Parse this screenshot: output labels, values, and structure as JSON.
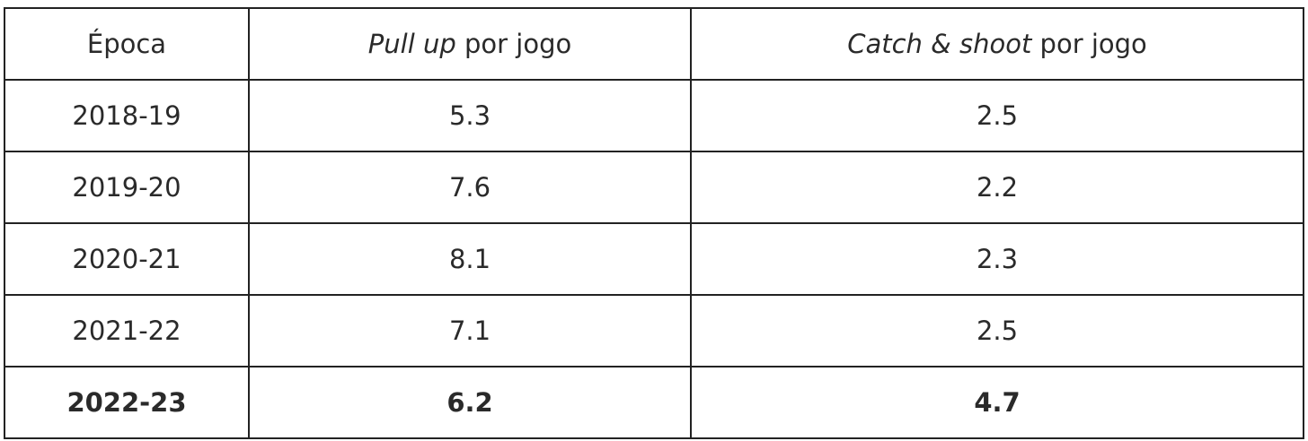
{
  "table": {
    "header": [
      "Época",
      {
        "italic": "Pull up",
        "text": "por jogo"
      },
      {
        "italic": "Catch & shoot",
        "text": "por jogo"
      }
    ],
    "rows": [
      [
        "2018-19",
        5.3,
        2.5
      ],
      [
        "2019-20",
        7.6,
        2.2
      ],
      [
        "2020-21",
        8.1,
        2.3
      ],
      [
        "2021-22",
        7.1,
        2.5
      ],
      [
        "2022-23",
        6.2,
        4.7
      ]
    ]
  }
}
